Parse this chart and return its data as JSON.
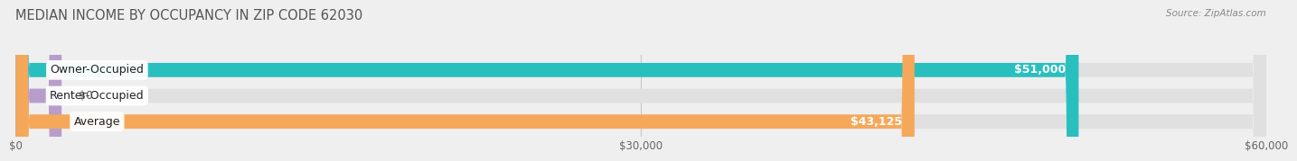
{
  "title": "MEDIAN INCOME BY OCCUPANCY IN ZIP CODE 62030",
  "source": "Source: ZipAtlas.com",
  "categories": [
    "Owner-Occupied",
    "Renter-Occupied",
    "Average"
  ],
  "values": [
    51000,
    0,
    43125
  ],
  "bar_colors": [
    "#2abfbf",
    "#b89dcc",
    "#f5a85a"
  ],
  "background_color": "#efefef",
  "bar_bg_color": "#e0e0e0",
  "xlim": [
    0,
    60000
  ],
  "xticks": [
    0,
    30000,
    60000
  ],
  "xtick_labels": [
    "$0",
    "$30,000",
    "$60,000"
  ],
  "value_labels": [
    "$51,000",
    "$0",
    "$43,125"
  ],
  "title_fontsize": 10.5,
  "label_fontsize": 9,
  "tick_fontsize": 8.5,
  "bar_height": 0.55
}
